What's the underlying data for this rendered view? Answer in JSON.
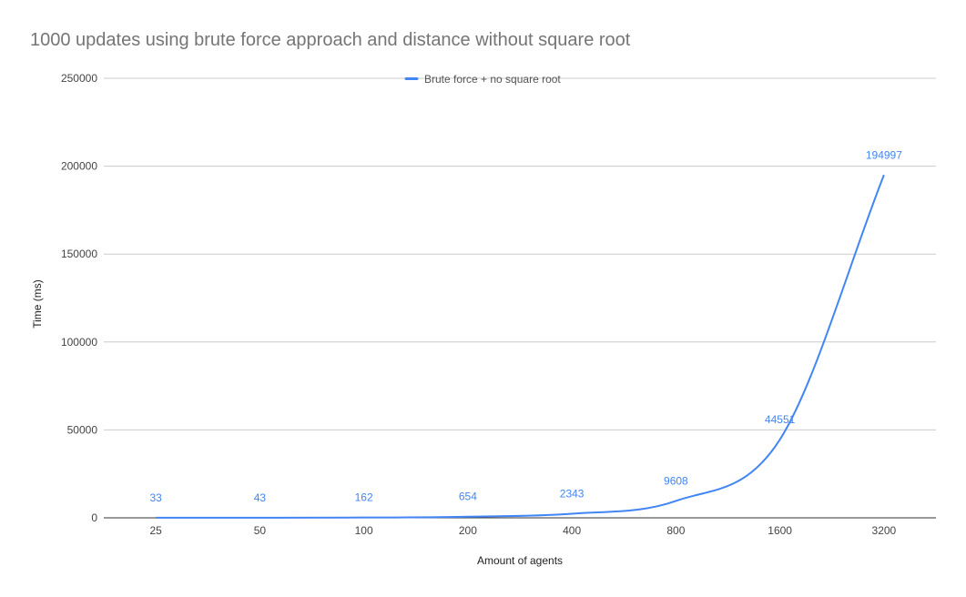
{
  "chart_data": {
    "type": "line",
    "title": "1000 updates using brute force approach and distance without square root",
    "xlabel": "Amount of agents",
    "ylabel": "Time (ms)",
    "categories": [
      "25",
      "50",
      "100",
      "200",
      "400",
      "800",
      "1600",
      "3200"
    ],
    "series": [
      {
        "name": "Brute force + no square root",
        "values": [
          33,
          43,
          162,
          654,
          2343,
          9608,
          44551,
          194997
        ],
        "data_labels": [
          "33",
          "43",
          "162",
          "654",
          "2343",
          "9608",
          "44551",
          "194997"
        ],
        "color": "#4285f4"
      }
    ],
    "ylim": [
      0,
      250000
    ],
    "yticks": [
      0,
      50000,
      100000,
      150000,
      200000,
      250000
    ],
    "ytick_labels": [
      "0",
      "50000",
      "100000",
      "150000",
      "200000",
      "250000"
    ],
    "grid": true,
    "legend_position": "top-center"
  }
}
